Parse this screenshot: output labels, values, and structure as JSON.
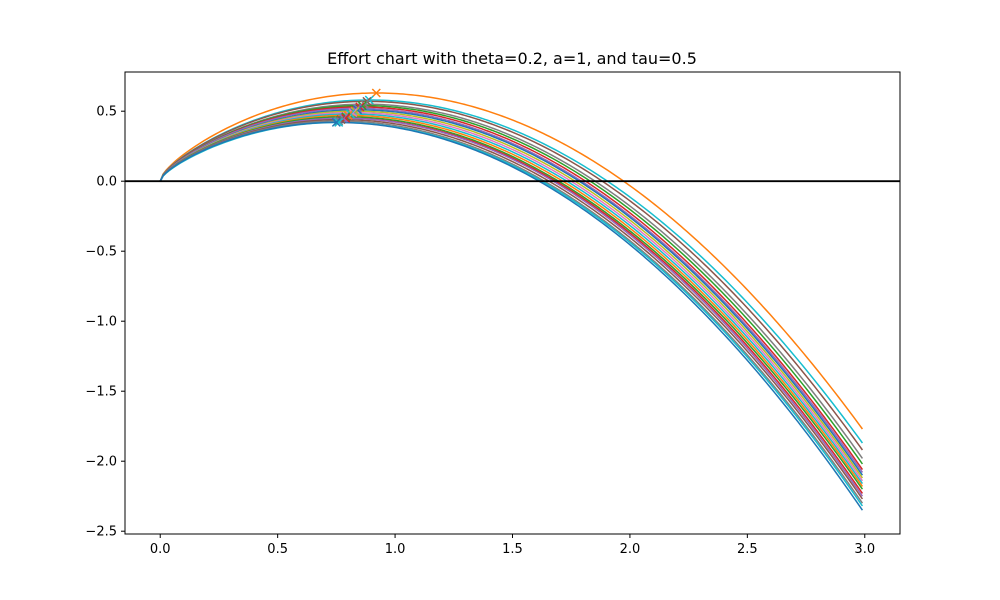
{
  "chart_data": {
    "type": "line",
    "title": "Effort chart with theta=0.2, a=1, and tau=0.5",
    "xlabel": "",
    "ylabel": "",
    "xlim": [
      -0.15,
      3.15
    ],
    "ylim": [
      -2.52,
      0.78
    ],
    "x_ticks": [
      0.0,
      0.5,
      1.0,
      1.5,
      2.0,
      2.5,
      3.0
    ],
    "x_tick_labels": [
      "0.0",
      "0.5",
      "1.0",
      "1.5",
      "2.0",
      "2.5",
      "3.0"
    ],
    "y_ticks": [
      0.5,
      0.0,
      -0.5,
      -1.0,
      -1.5,
      -2.0,
      -2.5
    ],
    "y_tick_labels": [
      "0.5",
      "0.0",
      "−0.5",
      "−1.0",
      "−1.5",
      "−2.0",
      "−2.5"
    ],
    "grid": false,
    "legend": "none",
    "reference_line": {
      "y": 0.0,
      "color": "#000000"
    },
    "x_range": [
      0.0,
      2.99
    ],
    "series": [
      {
        "color": "#ff7f0e",
        "peak": [
          0.92,
          0.63
        ],
        "end": [
          2.99,
          -1.77
        ]
      },
      {
        "color": "#17becf",
        "peak": [
          0.89,
          0.58
        ],
        "end": [
          2.99,
          -1.87
        ]
      },
      {
        "color": "#8c564b",
        "peak": [
          0.88,
          0.57
        ],
        "end": [
          2.99,
          -1.92
        ]
      },
      {
        "color": "#7f7f7f",
        "peak": [
          0.87,
          0.55
        ],
        "end": [
          2.99,
          -1.98
        ]
      },
      {
        "color": "#2ca02c",
        "peak": [
          0.86,
          0.54
        ],
        "end": [
          2.99,
          -2.02
        ]
      },
      {
        "color": "#d62728",
        "peak": [
          0.85,
          0.53
        ],
        "end": [
          2.99,
          -2.06
        ]
      },
      {
        "color": "#9467bd",
        "peak": [
          0.84,
          0.52
        ],
        "end": [
          2.99,
          -2.08
        ]
      },
      {
        "color": "#1f77b4",
        "peak": [
          0.84,
          0.51
        ],
        "end": [
          2.99,
          -2.1
        ]
      },
      {
        "color": "#bcbd22",
        "peak": [
          0.83,
          0.5
        ],
        "end": [
          2.99,
          -2.12
        ]
      },
      {
        "color": "#e377c2",
        "peak": [
          0.82,
          0.49
        ],
        "end": [
          2.99,
          -2.14
        ]
      },
      {
        "color": "#17becf",
        "peak": [
          0.81,
          0.48
        ],
        "end": [
          2.99,
          -2.16
        ]
      },
      {
        "color": "#ff7f0e",
        "peak": [
          0.8,
          0.47
        ],
        "end": [
          2.99,
          -2.18
        ]
      },
      {
        "color": "#2ca02c",
        "peak": [
          0.79,
          0.46
        ],
        "end": [
          2.99,
          -2.2
        ]
      },
      {
        "color": "#d62728",
        "peak": [
          0.79,
          0.45
        ],
        "end": [
          2.99,
          -2.23
        ]
      },
      {
        "color": "#9467bd",
        "peak": [
          0.78,
          0.45
        ],
        "end": [
          2.99,
          -2.25
        ]
      },
      {
        "color": "#8c564b",
        "peak": [
          0.77,
          0.44
        ],
        "end": [
          2.99,
          -2.27
        ]
      },
      {
        "color": "#7f7f7f",
        "peak": [
          0.76,
          0.43
        ],
        "end": [
          2.99,
          -2.3
        ]
      },
      {
        "color": "#17becf",
        "peak": [
          0.76,
          0.42
        ],
        "end": [
          2.99,
          -2.32
        ]
      },
      {
        "color": "#1f77b4",
        "peak": [
          0.75,
          0.42
        ],
        "end": [
          2.99,
          -2.35
        ]
      }
    ]
  }
}
